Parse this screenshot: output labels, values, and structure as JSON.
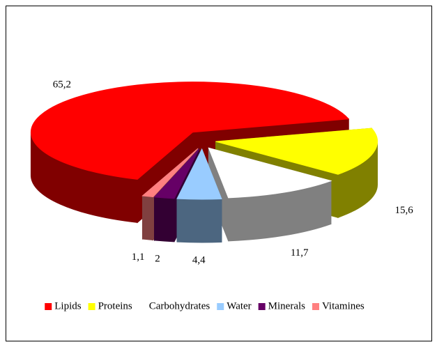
{
  "chart_data": {
    "type": "pie",
    "categories": [
      "Lipids",
      "Proteins",
      "Carbohydrates",
      "Water",
      "Minerals",
      "Vitamines"
    ],
    "values": [
      65.2,
      15.6,
      11.7,
      4.4,
      2,
      1.1
    ],
    "value_labels": [
      "65,2",
      "15,6",
      "11,7",
      "4,4",
      "2",
      "1,1"
    ],
    "colors": [
      "#ff0000",
      "#ffff00",
      "#ffffff",
      "#99ccff",
      "#660066",
      "#ff8080"
    ],
    "side_colors": [
      "#800000",
      "#808000",
      "#808080",
      "#4c6680",
      "#330033",
      "#804040"
    ],
    "legend": "bottom"
  }
}
